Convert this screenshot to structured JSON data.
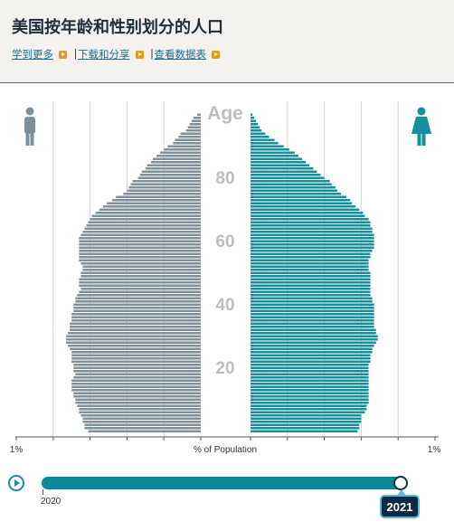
{
  "header": {
    "title": "美国按年龄和性别划分的人口",
    "links": [
      "学到更多",
      "下载和分享",
      "查看数据表"
    ],
    "separator": "|"
  },
  "colors": {
    "male": "#7e909c",
    "female": "#13909f",
    "slider": "#0a8899",
    "accent": "#e89a17"
  },
  "icons": {
    "male": "male-person-icon",
    "female": "female-person-icon"
  },
  "chart_data": {
    "type": "bar",
    "subtype": "population-pyramid",
    "y_title": "Age",
    "age_ticks": [
      "20",
      "40",
      "60",
      "80"
    ],
    "x_title": "% of Population",
    "x_left_label": "1%",
    "x_right_label": "1%",
    "xlim": [
      0,
      1
    ],
    "grid": true,
    "ages": [
      0,
      1,
      2,
      3,
      4,
      5,
      6,
      7,
      8,
      9,
      10,
      11,
      12,
      13,
      14,
      15,
      16,
      17,
      18,
      19,
      20,
      21,
      22,
      23,
      24,
      25,
      26,
      27,
      28,
      29,
      30,
      31,
      32,
      33,
      34,
      35,
      36,
      37,
      38,
      39,
      40,
      41,
      42,
      43,
      44,
      45,
      46,
      47,
      48,
      49,
      50,
      51,
      52,
      53,
      54,
      55,
      56,
      57,
      58,
      59,
      60,
      61,
      62,
      63,
      64,
      65,
      66,
      67,
      68,
      69,
      70,
      71,
      72,
      73,
      74,
      75,
      76,
      77,
      78,
      79,
      80,
      81,
      82,
      83,
      84,
      85,
      86,
      87,
      88,
      89,
      90,
      91,
      92,
      93,
      94,
      95,
      96,
      97,
      98,
      99,
      100
    ],
    "series": [
      {
        "name": "Male",
        "values": [
          0.61,
          0.63,
          0.63,
          0.64,
          0.64,
          0.65,
          0.66,
          0.66,
          0.67,
          0.68,
          0.68,
          0.69,
          0.69,
          0.7,
          0.7,
          0.7,
          0.7,
          0.69,
          0.68,
          0.69,
          0.69,
          0.69,
          0.7,
          0.7,
          0.7,
          0.7,
          0.71,
          0.72,
          0.73,
          0.73,
          0.73,
          0.72,
          0.71,
          0.71,
          0.71,
          0.7,
          0.7,
          0.7,
          0.69,
          0.69,
          0.69,
          0.68,
          0.68,
          0.67,
          0.66,
          0.65,
          0.66,
          0.66,
          0.66,
          0.65,
          0.65,
          0.64,
          0.64,
          0.65,
          0.66,
          0.66,
          0.66,
          0.66,
          0.66,
          0.66,
          0.66,
          0.66,
          0.65,
          0.64,
          0.63,
          0.62,
          0.61,
          0.6,
          0.59,
          0.57,
          0.55,
          0.53,
          0.51,
          0.48,
          0.46,
          0.42,
          0.4,
          0.39,
          0.38,
          0.37,
          0.34,
          0.33,
          0.32,
          0.3,
          0.29,
          0.27,
          0.26,
          0.24,
          0.22,
          0.2,
          0.18,
          0.15,
          0.14,
          0.12,
          0.11,
          0.08,
          0.07,
          0.06,
          0.05,
          0.04,
          0.02
        ]
      },
      {
        "name": "Female",
        "values": [
          0.58,
          0.59,
          0.59,
          0.6,
          0.6,
          0.6,
          0.62,
          0.63,
          0.63,
          0.64,
          0.64,
          0.64,
          0.64,
          0.64,
          0.64,
          0.64,
          0.64,
          0.64,
          0.64,
          0.64,
          0.64,
          0.64,
          0.65,
          0.65,
          0.65,
          0.66,
          0.66,
          0.67,
          0.68,
          0.69,
          0.69,
          0.68,
          0.68,
          0.67,
          0.67,
          0.67,
          0.67,
          0.67,
          0.67,
          0.67,
          0.67,
          0.66,
          0.66,
          0.65,
          0.65,
          0.65,
          0.65,
          0.65,
          0.65,
          0.65,
          0.65,
          0.64,
          0.64,
          0.64,
          0.64,
          0.65,
          0.65,
          0.66,
          0.67,
          0.67,
          0.67,
          0.67,
          0.67,
          0.66,
          0.66,
          0.65,
          0.65,
          0.64,
          0.62,
          0.61,
          0.59,
          0.57,
          0.55,
          0.54,
          0.52,
          0.49,
          0.47,
          0.46,
          0.44,
          0.43,
          0.4,
          0.38,
          0.36,
          0.34,
          0.32,
          0.3,
          0.28,
          0.26,
          0.24,
          0.21,
          0.18,
          0.15,
          0.13,
          0.1,
          0.08,
          0.06,
          0.05,
          0.04,
          0.03,
          0.02,
          0.01
        ]
      }
    ]
  },
  "timeline": {
    "start_label": "2020",
    "current_year": "2021",
    "progress": 0.97
  }
}
